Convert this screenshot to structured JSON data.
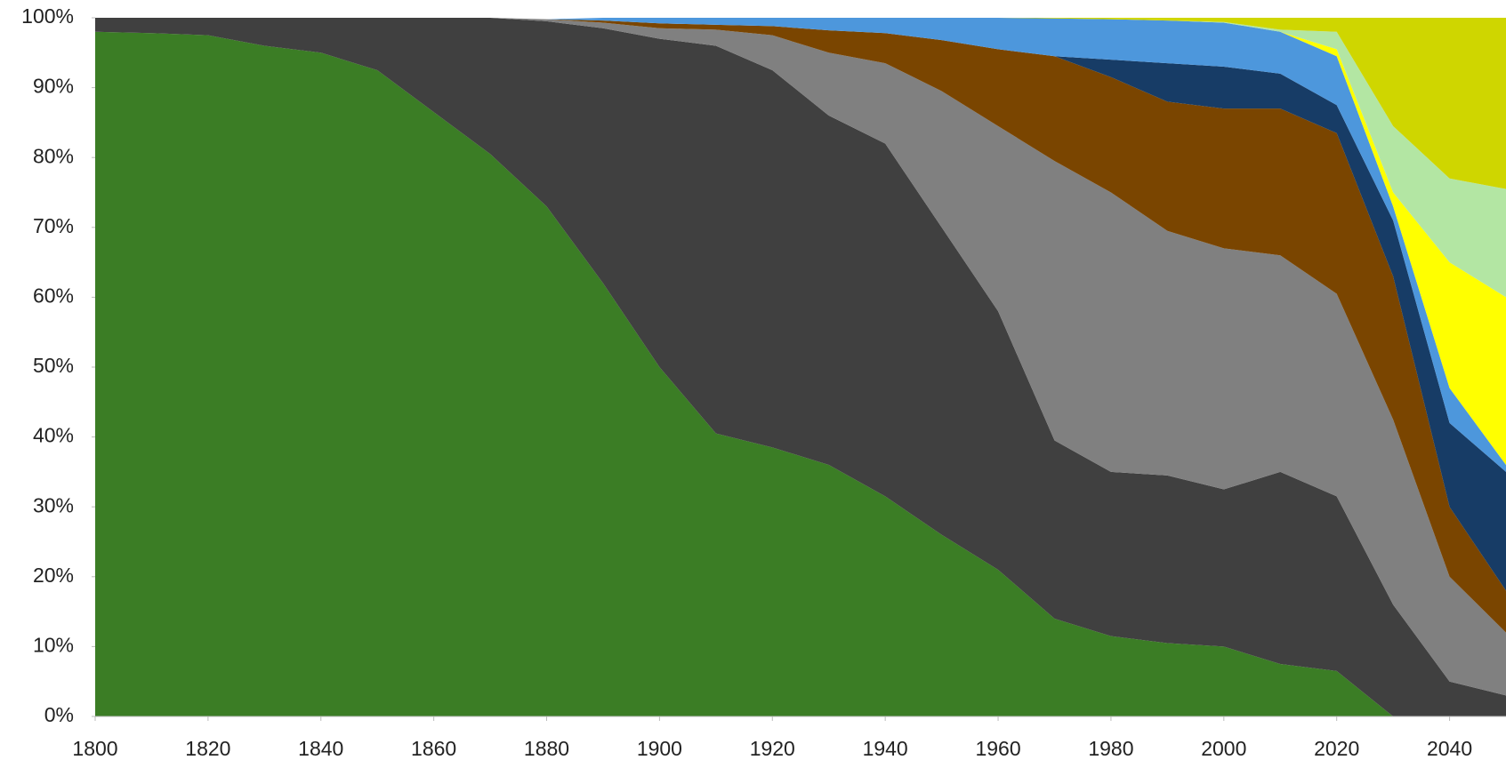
{
  "chart_data": {
    "type": "stacked_area",
    "x": [
      1800,
      1810,
      1820,
      1830,
      1840,
      1850,
      1860,
      1870,
      1880,
      1890,
      1900,
      1910,
      1920,
      1930,
      1940,
      1950,
      1960,
      1970,
      1980,
      1990,
      2000,
      2010,
      2020,
      2030,
      2040,
      2050
    ],
    "series": [
      {
        "color": "#3b7d25",
        "values": [
          98,
          97.8,
          97.5,
          96,
          95,
          92.5,
          86.5,
          80.5,
          73,
          62,
          50,
          40.5,
          38.5,
          36,
          31.5,
          26,
          21,
          14,
          11.5,
          10.5,
          10,
          7.5,
          6.5,
          0,
          0,
          0
        ]
      },
      {
        "color": "#404040",
        "values": [
          2,
          2.2,
          2.5,
          4,
          5,
          7.5,
          13.5,
          19.5,
          26.5,
          36.5,
          47,
          55.5,
          54,
          50,
          50.5,
          44,
          37,
          25.5,
          23.5,
          24,
          22.5,
          27.5,
          25,
          16,
          5,
          3
        ]
      },
      {
        "color": "#808080",
        "values": [
          0,
          0,
          0,
          0,
          0,
          0,
          0,
          0,
          0.3,
          0.8,
          1.5,
          2.3,
          5,
          9,
          11.5,
          19.5,
          26.5,
          40,
          40,
          35,
          34.5,
          31,
          29,
          26.5,
          15,
          9
        ]
      },
      {
        "color": "#7a4500",
        "values": [
          0,
          0,
          0,
          0,
          0,
          0,
          0,
          0,
          0,
          0.3,
          0.7,
          0.7,
          1.3,
          3.2,
          4.3,
          7.3,
          11,
          15,
          16.5,
          18.5,
          20,
          21,
          23,
          20.5,
          10,
          6
        ]
      },
      {
        "color": "#173c66",
        "values": [
          0,
          0,
          0,
          0,
          0,
          0,
          0,
          0,
          0,
          0,
          0,
          0,
          0,
          0,
          0,
          0,
          0,
          0,
          2.5,
          5.5,
          6,
          5,
          4,
          8,
          12,
          17
        ]
      },
      {
        "color": "#4d97dc",
        "values": [
          0,
          0,
          0,
          0,
          0,
          0,
          0,
          0,
          0,
          0.4,
          0.8,
          1,
          1.2,
          1.8,
          2.2,
          3.2,
          4.5,
          5.4,
          5.8,
          6.1,
          6.3,
          6,
          7,
          2,
          5,
          1
        ]
      },
      {
        "color": "#ffff00",
        "values": [
          0,
          0,
          0,
          0,
          0,
          0,
          0,
          0,
          0,
          0,
          0,
          0,
          0,
          0,
          0,
          0,
          0,
          0,
          0,
          0,
          0,
          0,
          1,
          2,
          18,
          24
        ]
      },
      {
        "color": "#b3e6a3",
        "values": [
          0,
          0,
          0,
          0,
          0,
          0,
          0,
          0,
          0,
          0,
          0,
          0,
          0,
          0,
          0,
          0,
          0,
          0,
          0,
          0,
          0.1,
          0.3,
          2.5,
          9.5,
          12,
          15.5
        ]
      },
      {
        "color": "#cfd600",
        "values": [
          0,
          0,
          0,
          0,
          0,
          0,
          0,
          0,
          0,
          0,
          0,
          0,
          0,
          0,
          0,
          0,
          0,
          0.1,
          0.2,
          0.4,
          0.6,
          1.7,
          2,
          15.5,
          23,
          24.5
        ]
      }
    ],
    "xlim": [
      1800,
      2050
    ],
    "xticks": [
      1800,
      1820,
      1840,
      1860,
      1880,
      1900,
      1920,
      1940,
      1960,
      1980,
      2000,
      2020,
      2040
    ],
    "ylim": [
      0,
      100
    ],
    "yticks": [
      {
        "value": 0,
        "label": "0%"
      },
      {
        "value": 10,
        "label": "10%"
      },
      {
        "value": 20,
        "label": "20%"
      },
      {
        "value": 30,
        "label": "30%"
      },
      {
        "value": 40,
        "label": "40%"
      },
      {
        "value": 50,
        "label": "50%"
      },
      {
        "value": 60,
        "label": "60%"
      },
      {
        "value": 70,
        "label": "70%"
      },
      {
        "value": 80,
        "label": "80%"
      },
      {
        "value": 90,
        "label": "90%"
      },
      {
        "value": 100,
        "label": "100%"
      }
    ]
  }
}
